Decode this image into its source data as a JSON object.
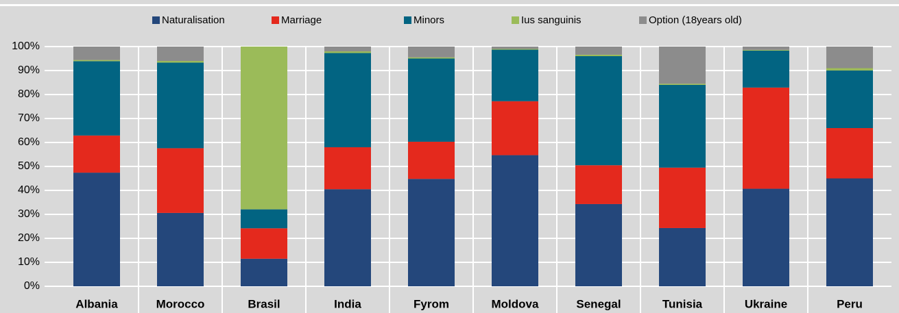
{
  "chart_data": {
    "type": "stacked_bar",
    "categories": [
      "Albania",
      "Morocco",
      "Brasil",
      "India",
      "Fyrom",
      "Moldova",
      "Senegal",
      "Tunisia",
      "Ukraine",
      "Peru"
    ],
    "series": [
      {
        "name": "Naturalisation",
        "color": "#24477b",
        "values": [
          47.4,
          30.6,
          11.5,
          40.5,
          44.8,
          54.7,
          34.3,
          24.3,
          40.7,
          45
        ]
      },
      {
        "name": "Marriage",
        "color": "#e4291d",
        "values": [
          15.5,
          27,
          12.7,
          17.5,
          15.5,
          22.5,
          16.2,
          25.2,
          42.2,
          21
        ]
      },
      {
        "name": "Minors",
        "color": "#026482",
        "values": [
          31,
          35.7,
          7.9,
          39.3,
          34.7,
          21.5,
          45.5,
          34.5,
          15.4,
          24
        ]
      },
      {
        "name": "Ius sanguinis",
        "color": "#9bbb59",
        "values": [
          0.5,
          0.7,
          67.9,
          0.7,
          0.5,
          0.3,
          0.6,
          0.5,
          0.3,
          1
        ]
      },
      {
        "name": "Option (18years old)",
        "color": "#8c8c8c",
        "values": [
          5.6,
          6,
          0,
          2,
          4.5,
          1,
          3.4,
          15.5,
          1.4,
          9
        ]
      }
    ],
    "ylim": [
      0,
      100
    ],
    "yticks": [
      {
        "value": 0,
        "label": "0%"
      },
      {
        "value": 10,
        "label": "10%"
      },
      {
        "value": 20,
        "label": "20%"
      },
      {
        "value": 30,
        "label": "30%"
      },
      {
        "value": 40,
        "label": "40%"
      },
      {
        "value": 50,
        "label": "50%"
      },
      {
        "value": 60,
        "label": "60%"
      },
      {
        "value": 70,
        "label": "70%"
      },
      {
        "value": 80,
        "label": "80%"
      },
      {
        "value": 90,
        "label": "90%"
      },
      {
        "value": 100,
        "label": "100%"
      }
    ],
    "grid": true
  }
}
